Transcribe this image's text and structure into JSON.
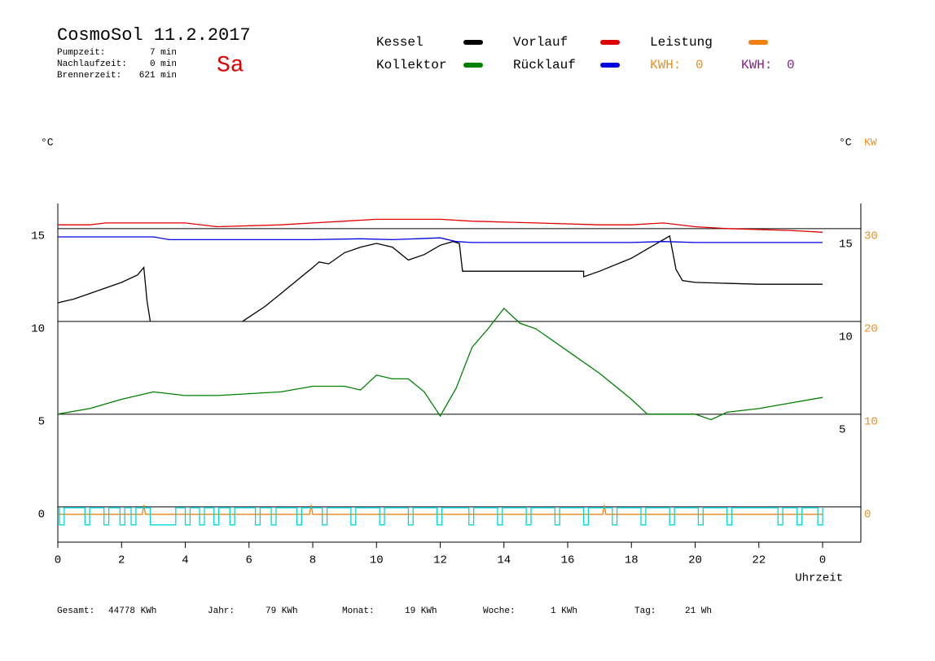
{
  "header": {
    "title": "CosmoSol 11.2.2017",
    "day": "Sa",
    "stats": [
      {
        "label": "Pumpzeit:",
        "value": "7 min"
      },
      {
        "label": "Nachlaufzeit:",
        "value": "0 min"
      },
      {
        "label": "Brennerzeit:",
        "value": "621 min"
      }
    ]
  },
  "kwh": [
    {
      "label": "KWH:",
      "value": 0,
      "color": "#e89020"
    },
    {
      "label": "KWH:",
      "value": 0,
      "color": "#8a2090"
    }
  ],
  "chart_data": {
    "type": "line",
    "y_unit": "°C",
    "y2_unit": "°C",
    "y2_unit2": "KW",
    "x_label": "Uhrzeit",
    "xlim": [
      0,
      25.2
    ],
    "xticks": [
      0,
      2,
      4,
      6,
      8,
      10,
      12,
      14,
      16,
      18,
      20,
      22,
      {
        "value": 24,
        "label": "0"
      }
    ],
    "ylim": [
      -1.5,
      16.75
    ],
    "yticks": [
      0,
      5,
      10,
      15
    ],
    "right_yticks": [
      5,
      10,
      15
    ],
    "y2lim": [
      -3,
      33.5
    ],
    "y2ticks": [
      0,
      10,
      20,
      30
    ],
    "y2_color": "#e89020",
    "grid": true,
    "series": [
      {
        "name": "Kessel",
        "color": "#000000",
        "x": [
          0,
          0.5,
          1,
          1.5,
          2,
          2.5,
          2.7,
          2.8,
          2.9,
          4,
          5.8,
          6.5,
          7,
          7.5,
          8,
          8.2,
          8.5,
          9,
          9.5,
          10,
          10.5,
          11,
          11.5,
          12,
          12.4,
          12.6,
          12.7,
          14,
          16.5,
          16.5,
          17,
          18,
          19,
          19.2,
          19.4,
          19.6,
          20,
          22,
          24
        ],
        "values": [
          11.4,
          11.6,
          11.9,
          12.2,
          12.5,
          12.9,
          13.3,
          11.5,
          10.4,
          null,
          10.4,
          11.2,
          11.9,
          12.6,
          13.3,
          13.6,
          13.5,
          14.1,
          14.4,
          14.6,
          14.4,
          13.7,
          14.0,
          14.5,
          14.7,
          14.6,
          13.1,
          13.1,
          13.1,
          12.8,
          13.1,
          13.8,
          14.8,
          15.0,
          13.2,
          12.6,
          12.5,
          12.4,
          12.4
        ]
      },
      {
        "name": "Kollektor",
        "color": "#008000",
        "x": [
          0,
          1,
          2,
          3,
          4,
          5,
          6,
          7,
          8,
          9,
          9.5,
          10,
          10.5,
          11,
          11.5,
          12,
          12.5,
          13,
          13.5,
          14,
          14.5,
          15,
          16,
          17,
          18,
          18.5,
          19,
          20,
          20.5,
          21,
          22,
          23,
          24
        ],
        "values": [
          5.4,
          5.7,
          6.2,
          6.6,
          6.4,
          6.4,
          6.5,
          6.6,
          6.9,
          6.9,
          6.7,
          7.5,
          7.3,
          7.3,
          6.6,
          5.3,
          6.8,
          9.0,
          10.0,
          11.1,
          10.3,
          10.0,
          8.8,
          7.6,
          6.2,
          5.4,
          5.4,
          5.4,
          5.1,
          5.5,
          5.7,
          6.0,
          6.3
        ]
      },
      {
        "name": "Vorlauf",
        "color": "#e00000",
        "x": [
          0,
          1,
          1.5,
          4,
          5,
          7,
          8,
          9,
          10,
          12,
          13,
          15,
          17,
          18,
          19,
          20,
          21,
          23,
          24
        ],
        "values": [
          15.6,
          15.6,
          15.7,
          15.7,
          15.5,
          15.6,
          15.7,
          15.8,
          15.9,
          15.9,
          15.8,
          15.7,
          15.6,
          15.6,
          15.7,
          15.5,
          15.4,
          15.3,
          15.2
        ]
      },
      {
        "name": "Rücklauf",
        "color": "#0000e0",
        "x": [
          0,
          3,
          3.5,
          8,
          9.5,
          10.5,
          12,
          12.5,
          13,
          18,
          19,
          20,
          24
        ],
        "values": [
          14.95,
          14.95,
          14.8,
          14.8,
          14.85,
          14.8,
          14.9,
          14.7,
          14.65,
          14.65,
          14.7,
          14.65,
          14.65
        ]
      },
      {
        "name": "Leistung",
        "color": "#f08010",
        "axis": "y2",
        "x": [
          0,
          2.65,
          2.7,
          2.75,
          7.9,
          7.95,
          8.0,
          17.1,
          17.15,
          17.2,
          24
        ],
        "values": [
          0,
          0,
          1,
          0,
          0,
          1,
          0,
          0,
          1,
          0,
          0
        ]
      },
      {
        "color": "#00d8d8",
        "x": [
          0.05,
          0.05,
          0.2,
          0.2,
          0.85,
          0.85,
          1.0,
          1.0,
          1.45,
          1.45,
          1.6,
          1.6,
          1.95,
          1.95,
          2.1,
          2.1,
          2.3,
          2.3,
          2.45,
          2.45,
          2.9,
          2.9,
          3.7,
          3.7,
          4.0,
          4.0,
          4.15,
          4.15,
          4.45,
          4.45,
          4.6,
          4.6,
          4.9,
          4.9,
          5.05,
          5.05,
          5.4,
          5.4,
          5.55,
          5.55,
          6.2,
          6.2,
          6.35,
          6.35,
          6.7,
          6.7,
          6.85,
          6.85,
          7.5,
          7.5,
          7.65,
          7.65,
          8.3,
          8.3,
          8.45,
          8.45,
          9.2,
          9.2,
          9.35,
          9.35,
          10.1,
          10.1,
          10.25,
          10.25,
          11.0,
          11.0,
          11.15,
          11.15,
          11.9,
          11.9,
          12.05,
          12.05,
          12.9,
          12.9,
          13.05,
          13.05,
          13.8,
          13.8,
          13.95,
          13.95,
          14.7,
          14.7,
          14.85,
          14.85,
          15.6,
          15.6,
          15.75,
          15.75,
          16.5,
          16.5,
          16.65,
          16.65,
          17.4,
          17.4,
          17.55,
          17.55,
          18.3,
          18.3,
          18.45,
          18.45,
          19.2,
          19.2,
          19.35,
          19.35,
          20.1,
          20.1,
          20.25,
          20.25,
          21.0,
          21.0,
          21.15,
          21.15,
          22.6,
          22.6,
          22.75,
          22.75,
          23.2,
          23.2,
          23.35,
          23.35,
          23.85,
          23.85,
          24.0,
          24.0
        ],
        "values": [
          0.35,
          -0.57,
          -0.57,
          0.35,
          0.35,
          -0.57,
          -0.57,
          0.35,
          0.35,
          -0.57,
          -0.57,
          0.35,
          0.35,
          -0.57,
          -0.57,
          0.35,
          0.35,
          -0.57,
          -0.57,
          0.35,
          0.35,
          -0.57,
          -0.57,
          0.35,
          0.35,
          -0.57,
          -0.57,
          0.35,
          0.35,
          -0.57,
          -0.57,
          0.35,
          0.35,
          -0.57,
          -0.57,
          0.35,
          0.35,
          -0.57,
          -0.57,
          0.35,
          0.35,
          -0.57,
          -0.57,
          0.35,
          0.35,
          -0.57,
          -0.57,
          0.35,
          0.35,
          -0.57,
          -0.57,
          0.35,
          0.35,
          -0.57,
          -0.57,
          0.35,
          0.35,
          -0.57,
          -0.57,
          0.35,
          0.35,
          -0.57,
          -0.57,
          0.35,
          0.35,
          -0.57,
          -0.57,
          0.35,
          0.35,
          -0.57,
          -0.57,
          0.35,
          0.35,
          -0.57,
          -0.57,
          0.35,
          0.35,
          -0.57,
          -0.57,
          0.35,
          0.35,
          -0.57,
          -0.57,
          0.35,
          0.35,
          -0.57,
          -0.57,
          0.35,
          0.35,
          -0.57,
          -0.57,
          0.35,
          0.35,
          -0.57,
          -0.57,
          0.35,
          0.35,
          -0.57,
          -0.57,
          0.35,
          0.35,
          -0.57,
          -0.57,
          0.35,
          0.35,
          -0.57,
          -0.57,
          0.35,
          0.35,
          -0.57,
          -0.57,
          0.35,
          0.35,
          -0.57,
          -0.57,
          0.35,
          0.35,
          -0.57,
          -0.57,
          0.35,
          0.35,
          -0.57,
          -0.57,
          0.35
        ]
      }
    ]
  },
  "footer": [
    {
      "label": "Gesamt:",
      "value": "44778 KWh"
    },
    {
      "label": "Jahr:",
      "value": "79 KWh"
    },
    {
      "label": "Monat:",
      "value": "19 KWh"
    },
    {
      "label": "Woche:",
      "value": "1 KWh"
    },
    {
      "label": "Tag:",
      "value": "21 Wh"
    }
  ]
}
